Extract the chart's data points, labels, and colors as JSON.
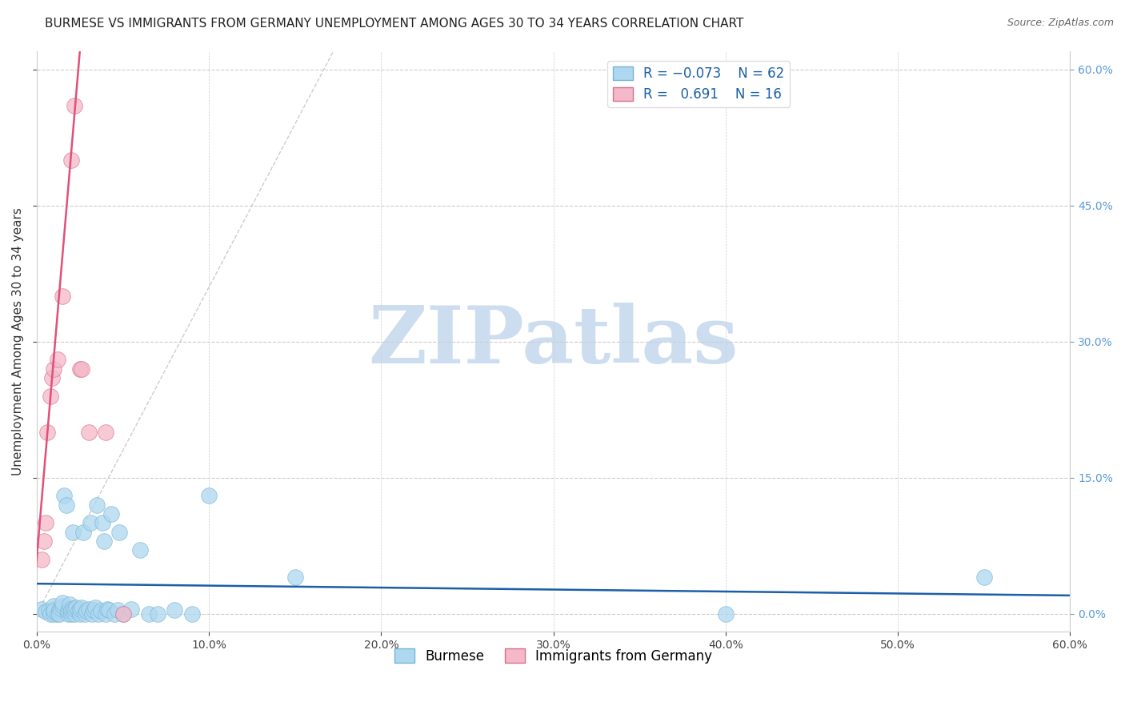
{
  "title": "BURMESE VS IMMIGRANTS FROM GERMANY UNEMPLOYMENT AMONG AGES 30 TO 34 YEARS CORRELATION CHART",
  "source": "Source: ZipAtlas.com",
  "ylabel": "Unemployment Among Ages 30 to 34 years",
  "xmin": 0.0,
  "xmax": 0.6,
  "ymin": -0.02,
  "ymax": 0.62,
  "watermark": "ZIPatlas",
  "legend_upper": [
    {
      "label": "R = -0.073   N = 62",
      "color": "#add8f0"
    },
    {
      "label": "R =  0.691   N = 16",
      "color": "#f4b8c8"
    }
  ],
  "legend_lower": [
    {
      "label": "Burmese",
      "color": "#add8f0"
    },
    {
      "label": "Immigrants from Germany",
      "color": "#f4b8c8"
    }
  ],
  "blue_scatter": [
    [
      0.003,
      0.005
    ],
    [
      0.005,
      0.002
    ],
    [
      0.007,
      0.003
    ],
    [
      0.008,
      0.0
    ],
    [
      0.01,
      0.0
    ],
    [
      0.01,
      0.005
    ],
    [
      0.01,
      0.008
    ],
    [
      0.01,
      0.003
    ],
    [
      0.012,
      0.0
    ],
    [
      0.013,
      0.004
    ],
    [
      0.013,
      0.0
    ],
    [
      0.014,
      0.006
    ],
    [
      0.015,
      0.008
    ],
    [
      0.015,
      0.012
    ],
    [
      0.016,
      0.13
    ],
    [
      0.017,
      0.12
    ],
    [
      0.018,
      0.0
    ],
    [
      0.018,
      0.003
    ],
    [
      0.019,
      0.005
    ],
    [
      0.019,
      0.01
    ],
    [
      0.02,
      0.0
    ],
    [
      0.02,
      0.004
    ],
    [
      0.021,
      0.006
    ],
    [
      0.021,
      0.09
    ],
    [
      0.022,
      0.0
    ],
    [
      0.022,
      0.005
    ],
    [
      0.023,
      0.007
    ],
    [
      0.024,
      0.003
    ],
    [
      0.025,
      0.0
    ],
    [
      0.025,
      0.005
    ],
    [
      0.026,
      0.007
    ],
    [
      0.027,
      0.09
    ],
    [
      0.028,
      0.0
    ],
    [
      0.029,
      0.003
    ],
    [
      0.03,
      0.005
    ],
    [
      0.031,
      0.1
    ],
    [
      0.032,
      0.0
    ],
    [
      0.033,
      0.004
    ],
    [
      0.034,
      0.007
    ],
    [
      0.035,
      0.12
    ],
    [
      0.036,
      0.0
    ],
    [
      0.037,
      0.003
    ],
    [
      0.038,
      0.1
    ],
    [
      0.039,
      0.08
    ],
    [
      0.04,
      0.0
    ],
    [
      0.041,
      0.005
    ],
    [
      0.042,
      0.004
    ],
    [
      0.043,
      0.11
    ],
    [
      0.045,
      0.0
    ],
    [
      0.047,
      0.004
    ],
    [
      0.048,
      0.09
    ],
    [
      0.05,
      0.0
    ],
    [
      0.055,
      0.005
    ],
    [
      0.06,
      0.07
    ],
    [
      0.065,
      0.0
    ],
    [
      0.07,
      0.0
    ],
    [
      0.08,
      0.004
    ],
    [
      0.09,
      0.0
    ],
    [
      0.1,
      0.13
    ],
    [
      0.15,
      0.04
    ],
    [
      0.4,
      0.0
    ],
    [
      0.55,
      0.04
    ]
  ],
  "pink_scatter": [
    [
      0.003,
      0.06
    ],
    [
      0.004,
      0.08
    ],
    [
      0.005,
      0.1
    ],
    [
      0.006,
      0.2
    ],
    [
      0.008,
      0.24
    ],
    [
      0.009,
      0.26
    ],
    [
      0.01,
      0.27
    ],
    [
      0.012,
      0.28
    ],
    [
      0.015,
      0.35
    ],
    [
      0.02,
      0.5
    ],
    [
      0.022,
      0.56
    ],
    [
      0.025,
      0.27
    ],
    [
      0.026,
      0.27
    ],
    [
      0.03,
      0.2
    ],
    [
      0.04,
      0.2
    ],
    [
      0.05,
      0.0
    ]
  ],
  "blue_line_color": "#1a5fa8",
  "pink_line_color": "#e0507a",
  "gray_dash_color": "#c0c0c0",
  "title_fontsize": 11,
  "axis_label_fontsize": 11,
  "tick_fontsize": 10,
  "right_tick_color": "#5b9bd5",
  "watermark_color": "#ccddf0",
  "watermark_fontsize": 72
}
